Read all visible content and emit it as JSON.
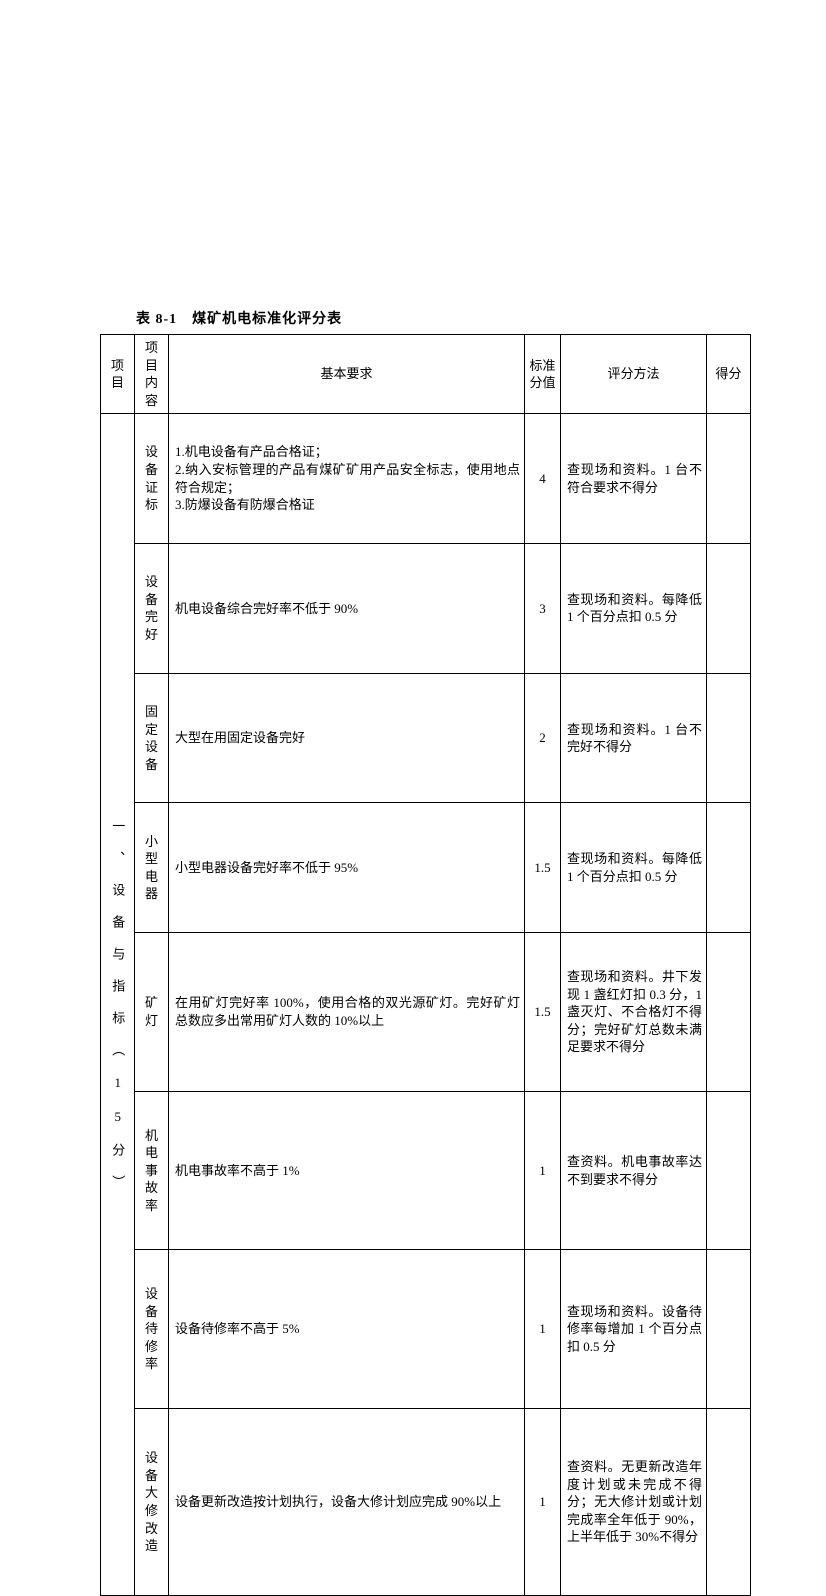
{
  "caption": "表 8-1　煤矿机电标准化评分表",
  "headers": {
    "project": "项目",
    "item": "项目\n内容",
    "requirement": "基本要求",
    "std_score": "标准\n分值",
    "method": "评分方法",
    "grade": "得分"
  },
  "section": {
    "title": "一 、 设 备 与 指 标 （ 1 5 分 ）"
  },
  "rows": [
    {
      "item": "设备\n证标",
      "requirement": "1.机电设备有产品合格证；\n2.纳入安标管理的产品有煤矿矿用产品安全标志，使用地点符合规定；\n3.防爆设备有防爆合格证",
      "score": "4",
      "method": "查现场和资料。1 台不符合要求不得分"
    },
    {
      "item": "设备\n完好",
      "requirement": "机电设备综合完好率不低于 90%",
      "score": "3",
      "method": "查现场和资料。每降低 1 个百分点扣 0.5 分"
    },
    {
      "item": "固定\n设备",
      "requirement": "大型在用固定设备完好",
      "score": "2",
      "method": "查现场和资料。1 台不完好不得分"
    },
    {
      "item": "小型\n电器",
      "requirement": "小型电器设备完好率不低于 95%",
      "score": "1.5",
      "method": "查现场和资料。每降低 1 个百分点扣 0.5 分"
    },
    {
      "item": "矿灯",
      "requirement": "在用矿灯完好率 100%，使用合格的双光源矿灯。完好矿灯总数应多出常用矿灯人数的 10%以上",
      "score": "1.5",
      "method": "查现场和资料。井下发现 1 盏红灯扣 0.3 分，1 盏灭灯、不合格灯不得分；完好矿灯总数未满足要求不得分"
    },
    {
      "item": "机电\n事故\n率",
      "requirement": "机电事故率不高于 1%",
      "score": "1",
      "method": "查资料。机电事故率达不到要求不得分"
    },
    {
      "item": "设备\n待修\n率",
      "requirement": "设备待修率不高于 5%",
      "score": "1",
      "method": "查现场和资料。设备待修率每增加 1 个百分点扣 0.5 分"
    },
    {
      "item": "设备\n大修\n改造",
      "requirement": "设备更新改造按计划执行，设备大修计划应完成 90%以上",
      "score": "1",
      "method": "查资料。无更新改造年度计划或未完成不得分；无大修计划或计划完成率全年低于 90%，上半年低于 30%不得分"
    }
  ]
}
